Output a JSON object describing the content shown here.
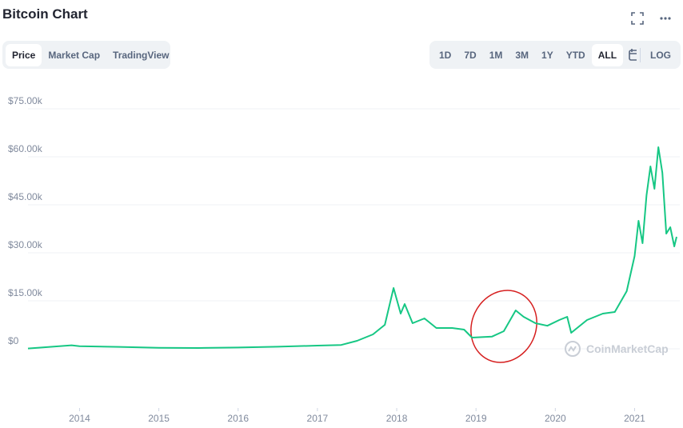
{
  "chart_data": {
    "type": "line",
    "title": "Bitcoin Chart",
    "tabs": [
      "Price",
      "Market Cap",
      "TradingView"
    ],
    "ranges": [
      "1D",
      "7D",
      "1M",
      "3M",
      "1Y",
      "YTD",
      "ALL"
    ],
    "scale_button": "LOG",
    "watermark": "CoinMarketCap",
    "color": "#16c784",
    "x": [
      2013.35,
      2013.9,
      2014.0,
      2014.5,
      2015.0,
      2015.5,
      2016.0,
      2016.5,
      2017.0,
      2017.3,
      2017.5,
      2017.7,
      2017.85,
      2017.96,
      2018.05,
      2018.1,
      2018.2,
      2018.35,
      2018.5,
      2018.7,
      2018.85,
      2018.95,
      2019.2,
      2019.35,
      2019.5,
      2019.6,
      2019.75,
      2019.9,
      2020.05,
      2020.15,
      2020.2,
      2020.4,
      2020.6,
      2020.75,
      2020.9,
      2021.0,
      2021.05,
      2021.1,
      2021.15,
      2021.2,
      2021.25,
      2021.3,
      2021.35,
      2021.4,
      2021.45,
      2021.5,
      2021.53
    ],
    "values": [
      100,
      1100,
      800,
      600,
      300,
      250,
      400,
      650,
      1000,
      1200,
      2500,
      4500,
      7500,
      19000,
      11000,
      14000,
      8000,
      9500,
      6500,
      6500,
      6000,
      3500,
      3800,
      5500,
      12000,
      10000,
      8000,
      7200,
      9000,
      10000,
      5000,
      9000,
      11000,
      11500,
      18000,
      29000,
      40000,
      33000,
      48000,
      57000,
      50000,
      63000,
      55000,
      36000,
      38000,
      32000,
      35000
    ],
    "xlim": [
      2013.35,
      2021.57
    ],
    "xticks": [
      2014,
      2015,
      2016,
      2017,
      2018,
      2019,
      2020,
      2021
    ],
    "ylim": [
      0,
      75000
    ],
    "yticks": [
      {
        "value": 0,
        "label": "$0"
      },
      {
        "value": 15000,
        "label": "$15.00k"
      },
      {
        "value": 30000,
        "label": "$30.00k"
      },
      {
        "value": 45000,
        "label": "$45.00k"
      },
      {
        "value": 60000,
        "label": "$60.00k"
      },
      {
        "value": 75000,
        "label": "$75.00k"
      }
    ],
    "grid": true
  }
}
